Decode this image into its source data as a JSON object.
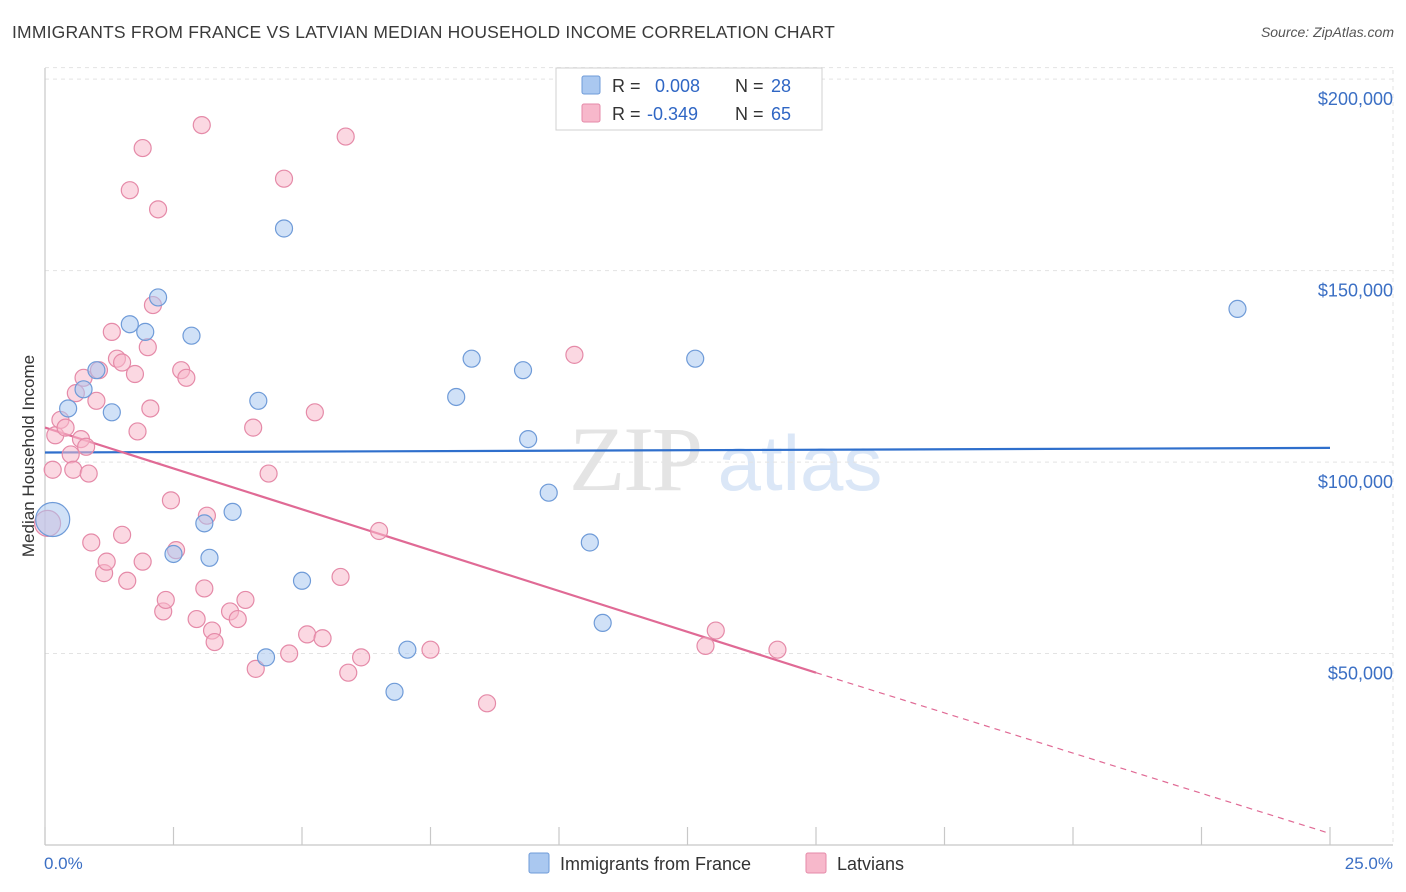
{
  "header": {
    "title": "IMMIGRANTS FROM FRANCE VS LATVIAN MEDIAN HOUSEHOLD INCOME CORRELATION CHART",
    "source": "Source: ZipAtlas.com"
  },
  "watermark": {
    "zip": "ZIP",
    "atlas": "atlas"
  },
  "legend": {
    "r_label": "R =",
    "n_label": "N =",
    "entries": [
      {
        "r": "0.008",
        "n": "28"
      },
      {
        "r": "-0.349",
        "n": "65"
      }
    ]
  },
  "chart_data": {
    "type": "scatter",
    "title": "IMMIGRANTS FROM FRANCE VS LATVIAN MEDIAN HOUSEHOLD INCOME CORRELATION CHART",
    "xlabel": "",
    "ylabel": "Median Household Income",
    "xlim": [
      0,
      25
    ],
    "ylim": [
      0,
      205000
    ],
    "x_tick_labels": [
      "0.0%",
      "25.0%"
    ],
    "y_ticks": [
      50000,
      100000,
      150000,
      200000
    ],
    "y_tick_labels": [
      "$50,000",
      "$100,000",
      "$150,000",
      "$200,000"
    ],
    "grid": true,
    "legend_position": "top-center",
    "colors": {
      "france_fill": "#aac8f0",
      "france_stroke": "#6f9bd8",
      "france_line": "#2f6fcc",
      "latvian_fill": "#f7b8cb",
      "latvian_stroke": "#e58aa8",
      "latvian_line": "#e06a95"
    },
    "series": [
      {
        "name": "Immigrants from France",
        "points": [
          [
            0.15,
            85000
          ],
          [
            0.45,
            114000
          ],
          [
            0.75,
            119000
          ],
          [
            1.0,
            124000
          ],
          [
            1.3,
            113000
          ],
          [
            1.65,
            136000
          ],
          [
            1.95,
            134000
          ],
          [
            2.2,
            143000
          ],
          [
            2.5,
            76000
          ],
          [
            2.85,
            133000
          ],
          [
            3.1,
            84000
          ],
          [
            3.2,
            75000
          ],
          [
            3.65,
            87000
          ],
          [
            4.15,
            116000
          ],
          [
            4.3,
            49000
          ],
          [
            4.65,
            161000
          ],
          [
            5.0,
            69000
          ],
          [
            6.8,
            40000
          ],
          [
            7.05,
            51000
          ],
          [
            8.0,
            117000
          ],
          [
            8.3,
            127000
          ],
          [
            9.3,
            124000
          ],
          [
            9.4,
            106000
          ],
          [
            9.8,
            92000
          ],
          [
            10.6,
            79000
          ],
          [
            10.85,
            58000
          ],
          [
            12.65,
            127000
          ],
          [
            23.2,
            140000
          ]
        ],
        "trend": {
          "x": [
            0,
            25
          ],
          "y": [
            102500,
            103700
          ]
        }
      },
      {
        "name": "Latvians",
        "points": [
          [
            0.05,
            84000
          ],
          [
            0.15,
            98000
          ],
          [
            0.2,
            107000
          ],
          [
            0.3,
            111000
          ],
          [
            0.4,
            109000
          ],
          [
            0.5,
            102000
          ],
          [
            0.55,
            98000
          ],
          [
            0.6,
            118000
          ],
          [
            0.7,
            106000
          ],
          [
            0.75,
            122000
          ],
          [
            0.8,
            104000
          ],
          [
            0.85,
            97000
          ],
          [
            0.9,
            79000
          ],
          [
            1.0,
            116000
          ],
          [
            1.05,
            124000
          ],
          [
            1.15,
            71000
          ],
          [
            1.2,
            74000
          ],
          [
            1.3,
            134000
          ],
          [
            1.4,
            127000
          ],
          [
            1.5,
            126000
          ],
          [
            1.5,
            81000
          ],
          [
            1.6,
            69000
          ],
          [
            1.65,
            171000
          ],
          [
            1.75,
            123000
          ],
          [
            1.8,
            108000
          ],
          [
            1.9,
            182000
          ],
          [
            1.9,
            74000
          ],
          [
            2.0,
            130000
          ],
          [
            2.05,
            114000
          ],
          [
            2.1,
            141000
          ],
          [
            2.2,
            166000
          ],
          [
            2.3,
            61000
          ],
          [
            2.35,
            64000
          ],
          [
            2.45,
            90000
          ],
          [
            2.55,
            77000
          ],
          [
            2.65,
            124000
          ],
          [
            2.75,
            122000
          ],
          [
            2.95,
            59000
          ],
          [
            3.05,
            188000
          ],
          [
            3.1,
            67000
          ],
          [
            3.15,
            86000
          ],
          [
            3.25,
            56000
          ],
          [
            3.3,
            53000
          ],
          [
            3.6,
            61000
          ],
          [
            3.75,
            59000
          ],
          [
            3.9,
            64000
          ],
          [
            4.05,
            109000
          ],
          [
            4.1,
            46000
          ],
          [
            4.35,
            97000
          ],
          [
            4.65,
            174000
          ],
          [
            4.75,
            50000
          ],
          [
            5.1,
            55000
          ],
          [
            5.25,
            113000
          ],
          [
            5.4,
            54000
          ],
          [
            5.75,
            70000
          ],
          [
            5.85,
            185000
          ],
          [
            5.9,
            45000
          ],
          [
            6.15,
            49000
          ],
          [
            6.5,
            82000
          ],
          [
            7.5,
            51000
          ],
          [
            8.6,
            37000
          ],
          [
            10.3,
            128000
          ],
          [
            12.85,
            52000
          ],
          [
            13.05,
            56000
          ],
          [
            14.25,
            51000
          ]
        ],
        "trend": {
          "x": [
            0,
            15
          ],
          "y": [
            109000,
            45000
          ],
          "dashed_to": [
            25,
            3000
          ]
        }
      }
    ]
  }
}
